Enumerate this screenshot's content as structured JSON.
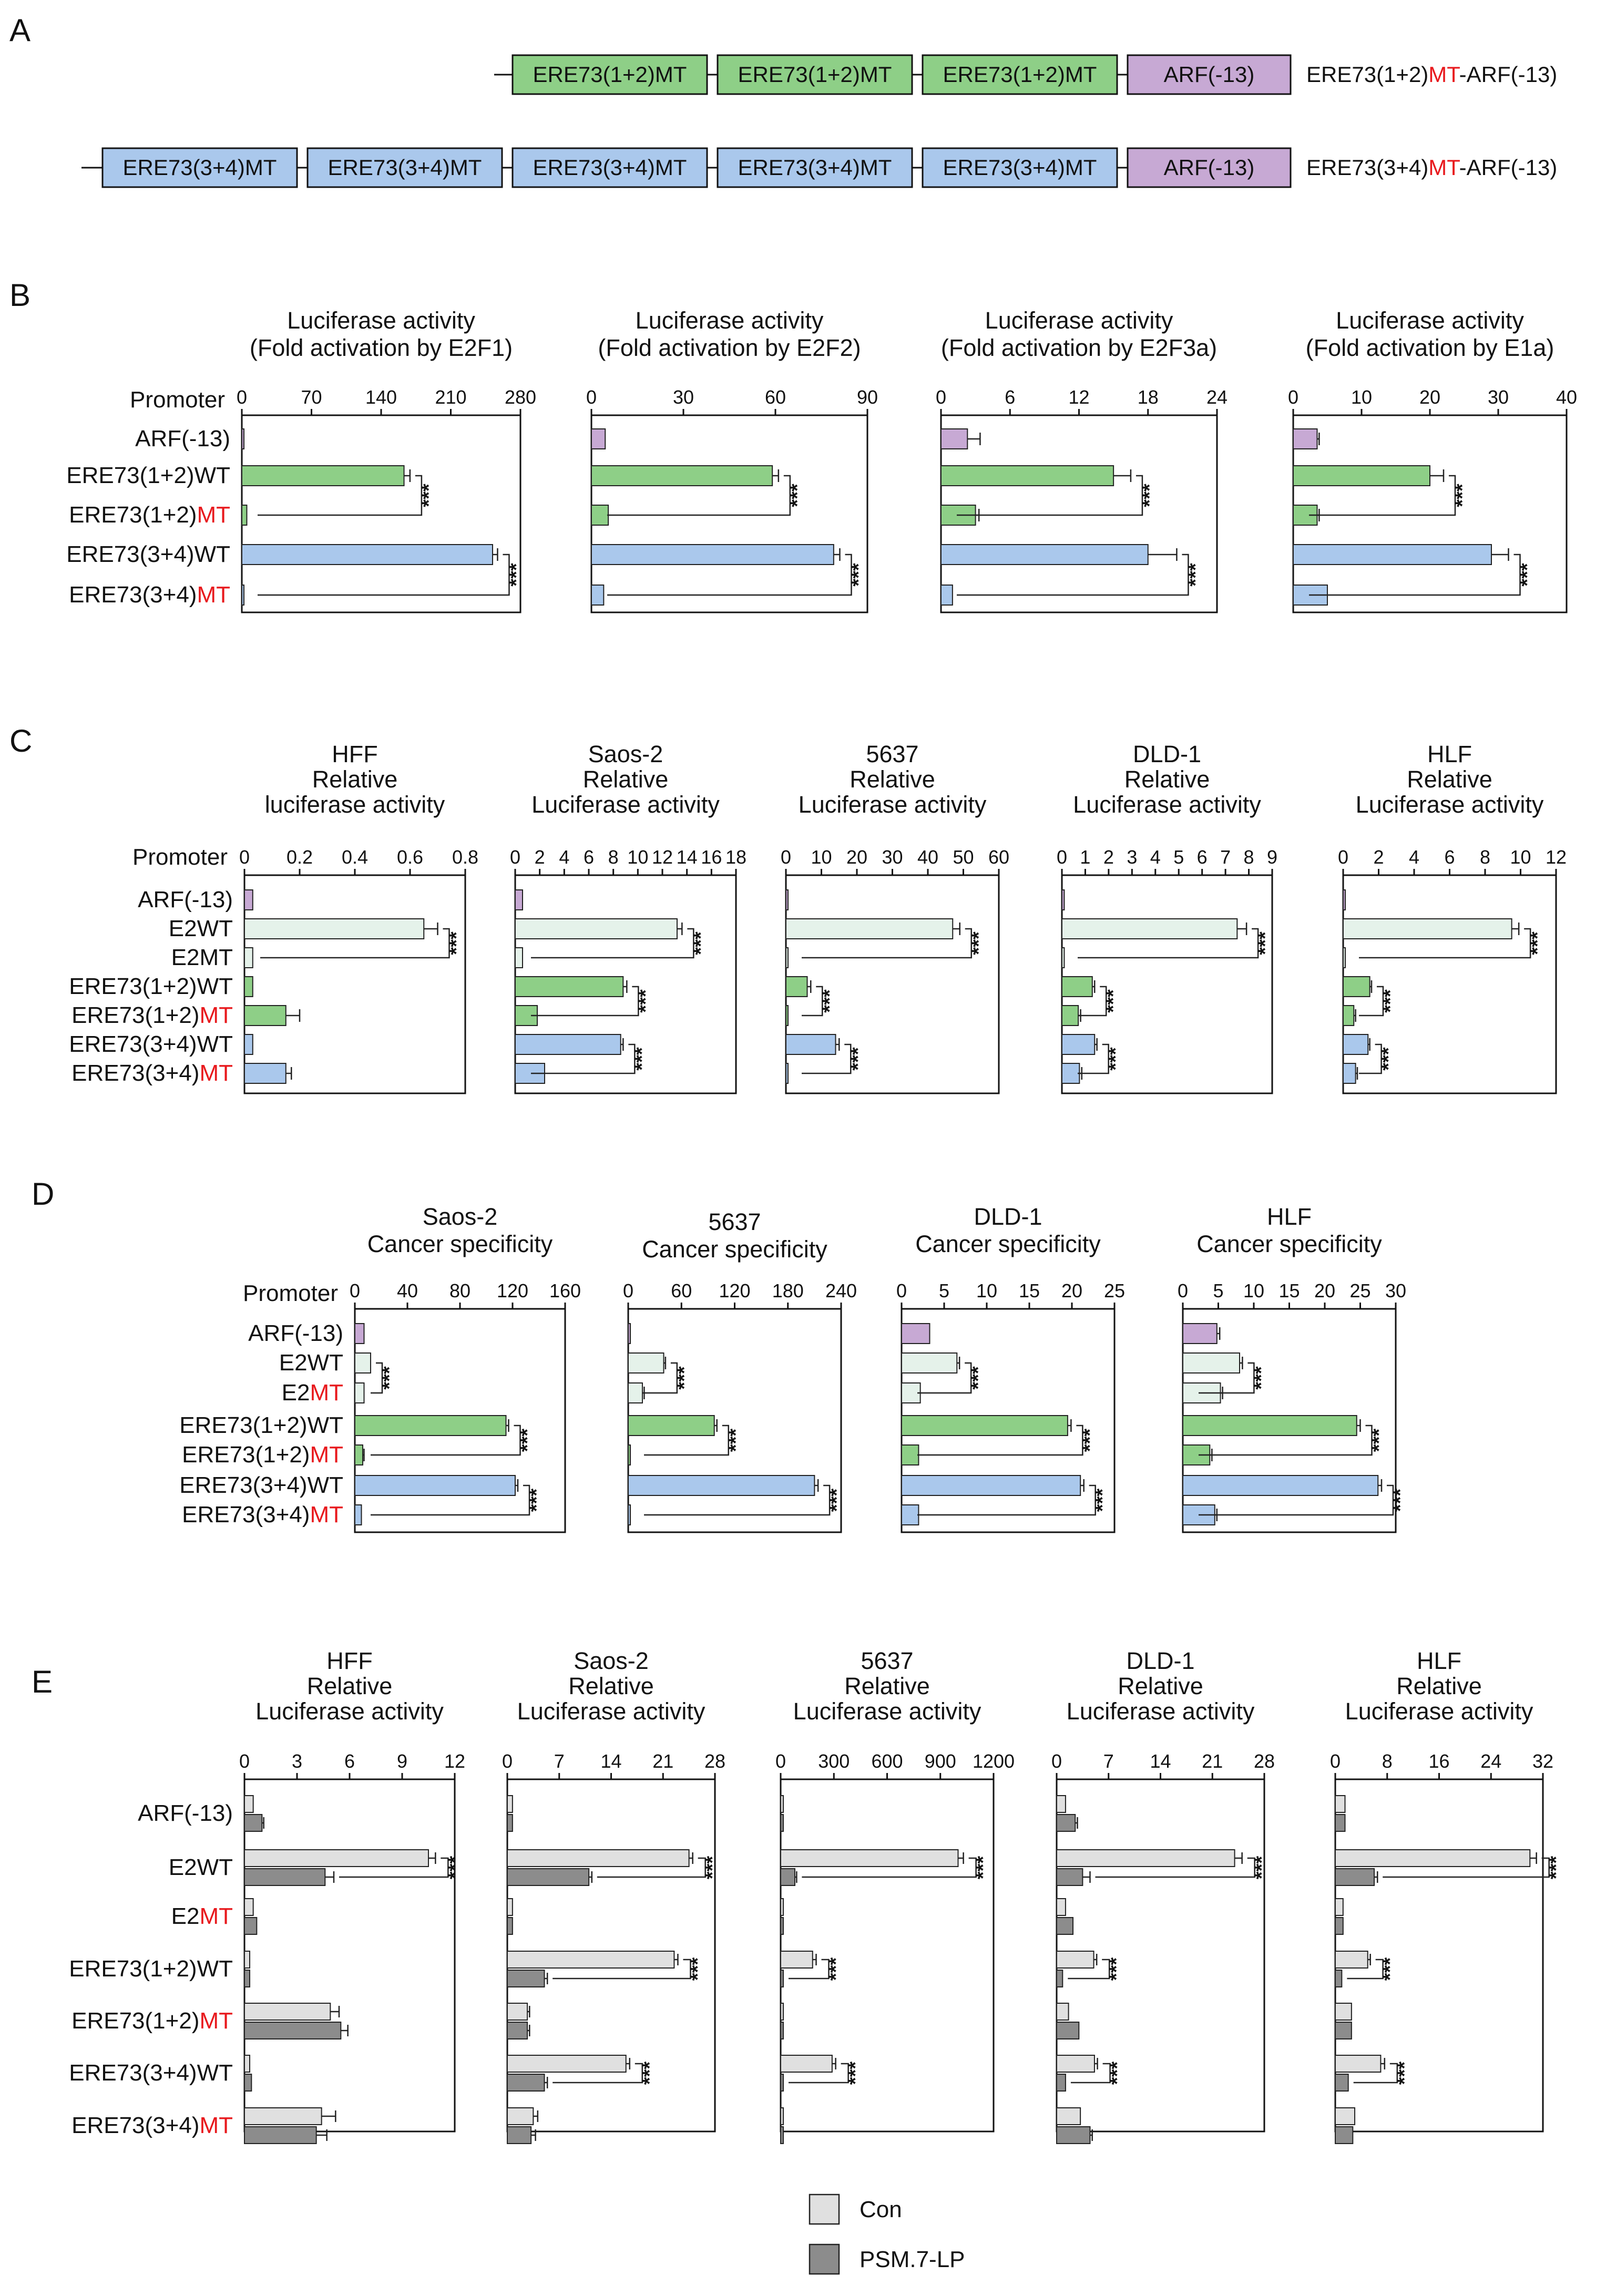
{
  "panels": {
    "A": "A",
    "B": "B",
    "C": "C",
    "D": "D",
    "E": "E"
  },
  "promoter_label": "Promoter",
  "stars": "***",
  "mt_text": "MT",
  "colors": {
    "purple": "#c7a9d4",
    "green": "#8ecf87",
    "blue": "#aac8ec",
    "light": "#e5f2ea",
    "con": "#e0e0e0",
    "psm": "#8c8c8c",
    "red": "#e8191d"
  },
  "constructs": [
    {
      "boxes": [
        "ERE73(1+2)MT",
        "ERE73(1+2)MT",
        "ERE73(1+2)MT"
      ],
      "arf": "ARF(-13)",
      "label": [
        "ERE73(1+2)",
        "MT",
        "-ARF(-13)"
      ]
    },
    {
      "boxes": [
        "ERE73(3+4)MT",
        "ERE73(3+4)MT",
        "ERE73(3+4)MT",
        "ERE73(3+4)MT",
        "ERE73(3+4)MT"
      ],
      "arf": "ARF(-13)",
      "label": [
        "ERE73(3+4)",
        "MT",
        "-ARF(-13)"
      ]
    }
  ],
  "legend": {
    "con": "Con",
    "psm": "PSM.7-LP"
  },
  "chart_data": [
    {
      "panel": "B",
      "type": "bar",
      "title": [
        "Luciferase activity",
        "(Fold activation by E2F1)"
      ],
      "ticks": [
        0,
        70,
        140,
        210,
        280
      ],
      "xlim": [
        0,
        280
      ],
      "rows": [
        [
          "ARF(-13)",
          ""
        ],
        [
          "ERE73(1+2)WT",
          ""
        ],
        [
          "ERE73(1+2)",
          "MT"
        ],
        [
          "ERE73(3+4)WT",
          ""
        ],
        [
          "ERE73(3+4)",
          "MT"
        ]
      ],
      "colors": [
        "purple",
        "green",
        "green",
        "blue",
        "blue"
      ],
      "values": [
        2,
        163,
        5,
        252,
        2
      ],
      "errors": [
        0,
        6,
        0,
        5,
        0
      ],
      "sig": [
        [
          1,
          2
        ],
        [
          3,
          4
        ]
      ]
    },
    {
      "panel": "B",
      "type": "bar",
      "title": [
        "Luciferase activity",
        "(Fold activation by E2F2)"
      ],
      "ticks": [
        0,
        30,
        60,
        90
      ],
      "xlim": [
        0,
        90
      ],
      "values": [
        4.5,
        59,
        5.5,
        79,
        4
      ],
      "errors": [
        0,
        2,
        0,
        2,
        0
      ],
      "colors": [
        "purple",
        "green",
        "green",
        "blue",
        "blue"
      ],
      "sig": [
        [
          1,
          2
        ],
        [
          3,
          4
        ]
      ]
    },
    {
      "panel": "B",
      "type": "bar",
      "title": [
        "Luciferase activity",
        "(Fold activation by E2F3a)"
      ],
      "ticks": [
        0,
        6,
        12,
        18,
        24
      ],
      "xlim": [
        0,
        24
      ],
      "values": [
        2.3,
        15,
        3,
        18,
        1
      ],
      "errors": [
        1.1,
        1.5,
        0.3,
        2.5,
        0
      ],
      "colors": [
        "purple",
        "green",
        "green",
        "blue",
        "blue"
      ],
      "sig": [
        [
          1,
          2
        ],
        [
          3,
          4
        ]
      ]
    },
    {
      "panel": "B",
      "type": "bar",
      "title": [
        "Luciferase activity",
        "(Fold activation by E1a)"
      ],
      "ticks": [
        0,
        10,
        20,
        30,
        40
      ],
      "xlim": [
        0,
        40
      ],
      "values": [
        3.5,
        20,
        3.5,
        29,
        5
      ],
      "errors": [
        0.3,
        2,
        0.3,
        2.5,
        0
      ],
      "colors": [
        "purple",
        "green",
        "green",
        "blue",
        "blue"
      ],
      "sig": [
        [
          1,
          2
        ],
        [
          3,
          4
        ]
      ]
    },
    {
      "panel": "C",
      "type": "bar",
      "title": [
        "HFF",
        "Relative",
        "luciferase activity"
      ],
      "ticks": [
        "0",
        "0.2",
        "0.4",
        "0.6",
        "0.8"
      ],
      "tickvals": [
        0,
        0.2,
        0.4,
        0.6,
        0.8
      ],
      "xlim": [
        0,
        0.8
      ],
      "rows": [
        [
          "ARF(-13)",
          ""
        ],
        [
          "E2WT",
          ""
        ],
        [
          "E2MT",
          ""
        ],
        [
          "ERE73(1+2)WT",
          ""
        ],
        [
          "ERE73(1+2)",
          "MT"
        ],
        [
          "ERE73(3+4)WT",
          ""
        ],
        [
          "ERE73(3+4)",
          "MT"
        ]
      ],
      "colors": [
        "purple",
        "light",
        "light",
        "green",
        "green",
        "blue",
        "blue"
      ],
      "values": [
        0.03,
        0.65,
        0.03,
        0.03,
        0.15,
        0.03,
        0.15
      ],
      "errors": [
        0,
        0.05,
        0,
        0,
        0.05,
        0,
        0.02
      ],
      "sig": [
        [
          1,
          2
        ]
      ]
    },
    {
      "panel": "C",
      "type": "bar",
      "title": [
        "Saos-2",
        "Relative",
        "Luciferase activity"
      ],
      "ticks": [
        "0",
        "2",
        "4",
        "6",
        "8",
        "10",
        "12",
        "14",
        "16",
        "18"
      ],
      "tickvals": [
        0,
        2,
        4,
        6,
        8,
        10,
        12,
        14,
        16,
        18
      ],
      "xlim": [
        0,
        18
      ],
      "values": [
        0.6,
        13.2,
        0.6,
        8.8,
        1.8,
        8.6,
        2.4
      ],
      "errors": [
        0,
        0.4,
        0,
        0.3,
        0,
        0.2,
        0
      ],
      "colors": [
        "purple",
        "light",
        "light",
        "green",
        "green",
        "blue",
        "blue"
      ],
      "sig": [
        [
          1,
          2
        ],
        [
          3,
          4
        ],
        [
          5,
          6
        ]
      ]
    },
    {
      "panel": "C",
      "type": "bar",
      "title": [
        "5637",
        "Relative",
        "Luciferase activity"
      ],
      "ticks": [
        "0",
        "10",
        "20",
        "30",
        "40",
        "50",
        "60"
      ],
      "tickvals": [
        0,
        10,
        20,
        30,
        40,
        50,
        60
      ],
      "xlim": [
        0,
        60
      ],
      "values": [
        0.3,
        47,
        0.5,
        6,
        0.5,
        14,
        0.5
      ],
      "errors": [
        0,
        2,
        0,
        1,
        0,
        1,
        0
      ],
      "colors": [
        "purple",
        "light",
        "light",
        "green",
        "green",
        "blue",
        "blue"
      ],
      "sig": [
        [
          1,
          2
        ],
        [
          3,
          4
        ],
        [
          5,
          6
        ]
      ]
    },
    {
      "panel": "C",
      "type": "bar",
      "title": [
        "DLD-1",
        "Relative",
        "Luciferase activity"
      ],
      "ticks": [
        "0",
        "1",
        "2",
        "3",
        "4",
        "5",
        "6",
        "7",
        "8",
        "9"
      ],
      "tickvals": [
        0,
        1,
        2,
        3,
        4,
        5,
        6,
        7,
        8,
        9
      ],
      "xlim": [
        0,
        9
      ],
      "values": [
        0.1,
        7.5,
        0.1,
        1.3,
        0.7,
        1.4,
        0.75
      ],
      "errors": [
        0,
        0.4,
        0,
        0.1,
        0.1,
        0.1,
        0.1
      ],
      "colors": [
        "purple",
        "light",
        "light",
        "green",
        "green",
        "blue",
        "blue"
      ],
      "sig": [
        [
          1,
          2
        ],
        [
          3,
          4
        ],
        [
          5,
          6
        ]
      ]
    },
    {
      "panel": "C",
      "type": "bar",
      "title": [
        "HLF",
        "Relative",
        "Luciferase activity"
      ],
      "ticks": [
        "0",
        "2",
        "4",
        "6",
        "8",
        "10",
        "12"
      ],
      "tickvals": [
        0,
        2,
        4,
        6,
        8,
        10,
        12
      ],
      "xlim": [
        0,
        12
      ],
      "values": [
        0.1,
        9.5,
        0.1,
        1.5,
        0.6,
        1.4,
        0.7
      ],
      "errors": [
        0,
        0.4,
        0,
        0.1,
        0.1,
        0.1,
        0.1
      ],
      "colors": [
        "purple",
        "light",
        "light",
        "green",
        "green",
        "blue",
        "blue"
      ],
      "sig": [
        [
          1,
          2
        ],
        [
          3,
          4
        ],
        [
          5,
          6
        ]
      ]
    },
    {
      "panel": "D",
      "type": "bar",
      "title": [
        "Saos-2",
        "Cancer specificity"
      ],
      "ticks": [
        0,
        40,
        80,
        120,
        160
      ],
      "xlim": [
        0,
        160
      ],
      "rows": [
        [
          "ARF(-13)",
          ""
        ],
        [
          "E2WT",
          ""
        ],
        [
          "E2",
          "MT"
        ],
        [
          "ERE73(1+2)WT",
          ""
        ],
        [
          "ERE73(1+2)",
          "MT"
        ],
        [
          "ERE73(3+4)WT",
          ""
        ],
        [
          "ERE73(3+4)",
          "MT"
        ]
      ],
      "colors": [
        "purple",
        "light",
        "light",
        "green",
        "green",
        "blue",
        "blue"
      ],
      "values": [
        7,
        12,
        7,
        115,
        6,
        122,
        5
      ],
      "errors": [
        0,
        0,
        0,
        2,
        1,
        2,
        0
      ],
      "sig": [
        [
          1,
          2
        ],
        [
          3,
          4
        ],
        [
          5,
          6
        ]
      ]
    },
    {
      "panel": "D",
      "type": "bar",
      "title": [
        "5637",
        "Cancer specificity"
      ],
      "ticks": [
        0,
        60,
        120,
        180,
        240
      ],
      "xlim": [
        0,
        240
      ],
      "values": [
        2,
        40,
        16,
        97,
        2,
        210,
        2
      ],
      "errors": [
        0,
        2,
        2,
        3,
        0,
        4,
        0
      ],
      "colors": [
        "purple",
        "light",
        "light",
        "green",
        "green",
        "blue",
        "blue"
      ],
      "sig": [
        [
          1,
          2
        ],
        [
          3,
          4
        ],
        [
          5,
          6
        ]
      ]
    },
    {
      "panel": "D",
      "type": "bar",
      "title": [
        "DLD-1",
        "Cancer specificity"
      ],
      "ticks": [
        0,
        5,
        10,
        15,
        20,
        25
      ],
      "xlim": [
        0,
        25
      ],
      "values": [
        3.3,
        6.5,
        2.2,
        19.5,
        2,
        21,
        2
      ],
      "errors": [
        0,
        0.3,
        0,
        0.4,
        0,
        0.4,
        0
      ],
      "colors": [
        "purple",
        "light",
        "light",
        "green",
        "green",
        "blue",
        "blue"
      ],
      "sig": [
        [
          1,
          2
        ],
        [
          3,
          4
        ],
        [
          5,
          6
        ]
      ]
    },
    {
      "panel": "D",
      "type": "bar",
      "title": [
        "HLF",
        "Cancer specificity"
      ],
      "ticks": [
        0,
        5,
        10,
        15,
        20,
        25,
        30
      ],
      "xlim": [
        0,
        30
      ],
      "values": [
        4.8,
        8,
        5.3,
        24.5,
        3.8,
        27.5,
        4.5
      ],
      "errors": [
        0.4,
        0.4,
        0.3,
        0.5,
        0.3,
        0.5,
        0.3
      ],
      "colors": [
        "purple",
        "light",
        "light",
        "green",
        "green",
        "blue",
        "blue"
      ],
      "sig": [
        [
          1,
          2
        ],
        [
          3,
          4
        ],
        [
          5,
          6
        ]
      ]
    },
    {
      "panel": "E",
      "type": "bar",
      "title": [
        "HFF",
        "Relative",
        "Luciferase activity"
      ],
      "ticks": [
        0,
        3,
        6,
        9,
        12
      ],
      "xlim": [
        0,
        12
      ],
      "rows": [
        [
          "ARF(-13)",
          ""
        ],
        [
          "E2WT",
          ""
        ],
        [
          "E2",
          "MT"
        ],
        [
          "ERE73(1+2)WT",
          ""
        ],
        [
          "ERE73(1+2)",
          "MT"
        ],
        [
          "ERE73(3+4)WT",
          ""
        ],
        [
          "ERE73(3+4)",
          "MT"
        ]
      ],
      "series": [
        {
          "name": "Con",
          "values": [
            0.5,
            10.5,
            0.5,
            0.3,
            4.9,
            0.3,
            4.4
          ],
          "errors": [
            0,
            0.4,
            0,
            0,
            0.5,
            0,
            0.8
          ]
        },
        {
          "name": "PSM.7-LP",
          "values": [
            1.0,
            4.6,
            0.7,
            0.3,
            5.5,
            0.4,
            4.1
          ],
          "errors": [
            0.1,
            0.5,
            0,
            0,
            0.4,
            0,
            0.6
          ]
        }
      ],
      "sig": [
        1
      ]
    },
    {
      "panel": "E",
      "type": "bar",
      "title": [
        "Saos-2",
        "Relative",
        "Luciferase activity"
      ],
      "ticks": [
        0,
        7,
        14,
        21,
        28
      ],
      "xlim": [
        0,
        28
      ],
      "series": [
        {
          "name": "Con",
          "values": [
            0.7,
            24.5,
            0.7,
            22.5,
            2.7,
            16,
            3.5
          ],
          "errors": [
            0,
            0.5,
            0,
            0.5,
            0.3,
            0.5,
            0.6
          ]
        },
        {
          "name": "PSM.7-LP",
          "values": [
            0.7,
            11,
            0.7,
            5,
            2.7,
            5,
            3.2
          ],
          "errors": [
            0,
            0.4,
            0,
            0.4,
            0.3,
            0.4,
            0.6
          ]
        }
      ],
      "sig": [
        1,
        3,
        5
      ]
    },
    {
      "panel": "E",
      "type": "bar",
      "title": [
        "5637",
        "Relative",
        "Luciferase activity"
      ],
      "ticks": [
        0,
        300,
        600,
        900,
        1200
      ],
      "xlim": [
        0,
        1200
      ],
      "series": [
        {
          "name": "Con",
          "values": [
            5,
            1000,
            5,
            180,
            5,
            290,
            5
          ],
          "errors": [
            0,
            30,
            0,
            20,
            0,
            20,
            0
          ]
        },
        {
          "name": "PSM.7-LP",
          "values": [
            5,
            80,
            5,
            5,
            5,
            5,
            5
          ],
          "errors": [
            0,
            10,
            0,
            0,
            0,
            0,
            0
          ]
        }
      ],
      "sig": [
        1,
        3,
        5
      ]
    },
    {
      "panel": "E",
      "type": "bar",
      "title": [
        "DLD-1",
        "Relative",
        "Luciferase activity"
      ],
      "ticks": [
        0,
        7,
        14,
        21,
        28
      ],
      "xlim": [
        0,
        28
      ],
      "series": [
        {
          "name": "Con",
          "values": [
            1.2,
            24,
            1.2,
            5,
            1.6,
            5.1,
            3.2
          ],
          "errors": [
            0,
            1,
            0,
            0.4,
            0,
            0.4,
            0
          ]
        },
        {
          "name": "PSM.7-LP",
          "values": [
            2.5,
            3.5,
            2.2,
            0.8,
            3,
            1.2,
            4.5
          ],
          "errors": [
            0.3,
            1,
            0,
            0,
            0,
            0,
            0.3
          ]
        }
      ],
      "sig": [
        1,
        3,
        5
      ]
    },
    {
      "panel": "E",
      "type": "bar",
      "title": [
        "HLF",
        "Relative",
        "Luciferase activity"
      ],
      "ticks": [
        0,
        8,
        16,
        24,
        32
      ],
      "xlim": [
        0,
        32
      ],
      "series": [
        {
          "name": "Con",
          "values": [
            1.5,
            30,
            1.2,
            5,
            2.5,
            7,
            3
          ],
          "errors": [
            0,
            1,
            0,
            0.4,
            0,
            0.6,
            0
          ]
        },
        {
          "name": "PSM.7-LP",
          "values": [
            1.5,
            6,
            1.2,
            1,
            2.5,
            2,
            2.7
          ],
          "errors": [
            0,
            0.5,
            0,
            0,
            0,
            0,
            0
          ]
        }
      ],
      "sig": [
        1,
        3,
        5
      ]
    }
  ]
}
